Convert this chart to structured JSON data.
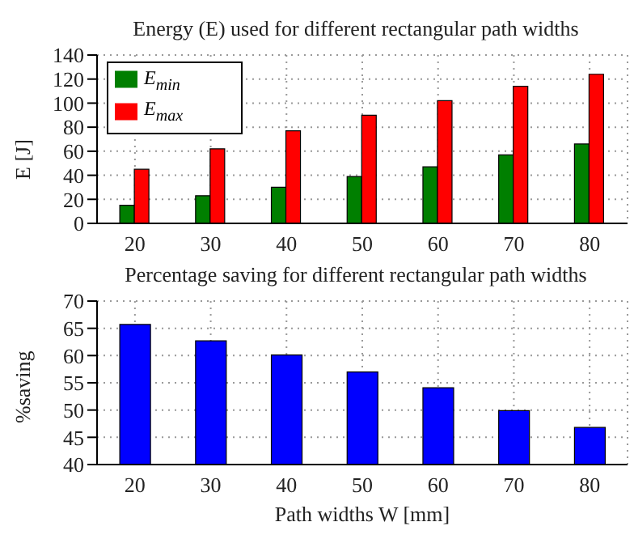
{
  "chart_data": [
    {
      "type": "bar",
      "title": "Energy (E) used for different rectangular path widths",
      "ylabel": "E [J]",
      "categories": [
        "20",
        "30",
        "40",
        "50",
        "60",
        "70",
        "80"
      ],
      "series": [
        {
          "name": "E$_{min}$",
          "color": "#007f00",
          "values": [
            15,
            23,
            30,
            39,
            47,
            57,
            66
          ]
        },
        {
          "name": "E$_{max}$",
          "color": "#ff0000",
          "values": [
            45,
            62,
            77,
            90,
            102,
            114,
            124
          ]
        }
      ],
      "ylim": [
        0,
        140
      ],
      "yticks": [
        0,
        20,
        40,
        60,
        80,
        100,
        120,
        140
      ],
      "grid": true,
      "legend": "top left"
    },
    {
      "type": "bar",
      "title": "Percentage saving for different rectangular path widths",
      "ylabel": "%saving",
      "xlabel": "Path widths W [mm]",
      "categories": [
        "20",
        "30",
        "40",
        "50",
        "60",
        "70",
        "80"
      ],
      "series": [
        {
          "color": "#0000ff",
          "values": [
            65.7,
            62.7,
            60.1,
            57,
            54.1,
            49.9,
            46.8
          ]
        }
      ],
      "ylim": [
        40,
        70
      ],
      "yticks": [
        40,
        45,
        50,
        55,
        60,
        65,
        70
      ],
      "grid": true,
      "legend": false
    }
  ]
}
